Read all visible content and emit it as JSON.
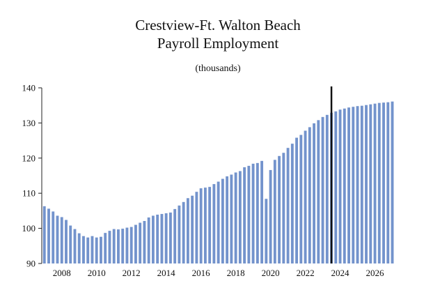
{
  "chart_data": {
    "type": "bar",
    "title_lines": [
      "Crestview-Ft. Walton Beach",
      "Payroll Employment"
    ],
    "subtitle": "(thousands)",
    "xlabel": "",
    "ylabel": "",
    "ylim": [
      90,
      140
    ],
    "y_ticks": [
      "90",
      "100",
      "110",
      "120",
      "130",
      "140"
    ],
    "x_ticks": [
      "2008",
      "2010",
      "2012",
      "2014",
      "2016",
      "2018",
      "2020",
      "2022",
      "2024",
      "2026"
    ],
    "x_tick_positions": [
      2008,
      2010,
      2012,
      2014,
      2016,
      2018,
      2020,
      2022,
      2024,
      2026
    ],
    "grid": false,
    "legend": "none",
    "bar_color": "#7393cc",
    "marker_color": "#111111",
    "forecast_divider_x": 2023.5,
    "x": [
      2007.0,
      2007.25,
      2007.5,
      2007.75,
      2008.0,
      2008.25,
      2008.5,
      2008.75,
      2009.0,
      2009.25,
      2009.5,
      2009.75,
      2010.0,
      2010.25,
      2010.5,
      2010.75,
      2011.0,
      2011.25,
      2011.5,
      2011.75,
      2012.0,
      2012.25,
      2012.5,
      2012.75,
      2013.0,
      2013.25,
      2013.5,
      2013.75,
      2014.0,
      2014.25,
      2014.5,
      2014.75,
      2015.0,
      2015.25,
      2015.5,
      2015.75,
      2016.0,
      2016.25,
      2016.5,
      2016.75,
      2017.0,
      2017.25,
      2017.5,
      2017.75,
      2018.0,
      2018.25,
      2018.5,
      2018.75,
      2019.0,
      2019.25,
      2019.5,
      2019.75,
      2020.0,
      2020.25,
      2020.5,
      2020.75,
      2021.0,
      2021.25,
      2021.5,
      2021.75,
      2022.0,
      2022.25,
      2022.5,
      2022.75,
      2023.0,
      2023.25,
      2023.5,
      2023.75,
      2024.0,
      2024.25,
      2024.5,
      2024.75,
      2025.0,
      2025.25,
      2025.5,
      2025.75,
      2026.0,
      2026.25,
      2026.5,
      2026.75,
      2027.0
    ],
    "values": [
      106.3,
      105.6,
      104.8,
      103.6,
      103.2,
      102.4,
      100.8,
      99.8,
      98.6,
      97.8,
      97.4,
      97.8,
      97.4,
      97.6,
      98.7,
      99.3,
      99.8,
      99.7,
      99.9,
      100.2,
      100.4,
      101.0,
      101.6,
      102.1,
      103.1,
      103.6,
      103.9,
      104.1,
      104.3,
      104.5,
      105.5,
      106.5,
      107.5,
      108.6,
      109.3,
      110.4,
      111.4,
      111.6,
      111.8,
      112.6,
      113.3,
      114.1,
      114.8,
      115.3,
      115.9,
      116.3,
      117.4,
      117.8,
      118.4,
      118.6,
      119.2,
      108.4,
      116.6,
      119.5,
      120.6,
      121.5,
      122.9,
      124.1,
      125.8,
      126.6,
      127.8,
      128.8,
      129.9,
      130.8,
      131.7,
      132.3,
      132.9,
      133.3,
      133.8,
      134.1,
      134.4,
      134.6,
      134.8,
      134.9,
      135.1,
      135.3,
      135.5,
      135.7,
      135.8,
      135.9,
      136.1
    ]
  }
}
